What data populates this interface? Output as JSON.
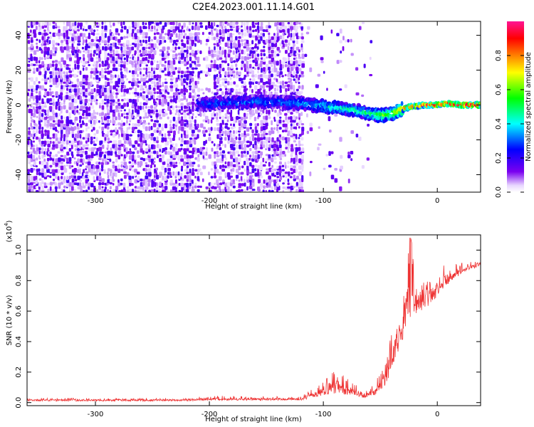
{
  "title": "C2E4.2023.001.11.14.G01",
  "colors": {
    "snr_line": "#ee3333",
    "scale": [
      "#ffffff",
      "#e8d6ff",
      "#7a00f0",
      "#0000ff",
      "#00ffff",
      "#00ff00",
      "#ffff00",
      "#ff8000",
      "#ff0000",
      "#ff1493"
    ]
  },
  "chart_data": [
    {
      "type": "heatmap",
      "xlabel": "Height of straight line (km)",
      "ylabel": "Frequency (Hz)",
      "xlim": [
        -360,
        38
      ],
      "ylim": [
        -50,
        48
      ],
      "xticks": [
        -300,
        -200,
        -100,
        0
      ],
      "yticks": [
        -40,
        -20,
        0,
        20,
        40
      ],
      "colorbar": {
        "label": "Normalized spectral amplitude",
        "range": [
          0,
          1
        ],
        "ticks": [
          "0.0",
          "0.2",
          "0.4",
          "0.6",
          "0.8"
        ]
      },
      "features": {
        "noise_region_x": [
          -360,
          -120
        ],
        "gap_x": [
          -210,
          -198
        ],
        "signal_track": [
          {
            "x": -210,
            "f": 0.0,
            "amp": 0.25
          },
          {
            "x": -195,
            "f": 1.0,
            "amp": 0.3
          },
          {
            "x": -155,
            "f": 2.0,
            "amp": 0.3
          },
          {
            "x": -120,
            "f": 1.0,
            "amp": 0.35
          },
          {
            "x": -100,
            "f": -1.0,
            "amp": 0.4
          },
          {
            "x": -80,
            "f": -2.0,
            "amp": 0.45
          },
          {
            "x": -60,
            "f": -5.0,
            "amp": 0.5
          },
          {
            "x": -50,
            "f": -6.0,
            "amp": 0.55
          },
          {
            "x": -40,
            "f": -5.0,
            "amp": 0.6
          },
          {
            "x": -25,
            "f": -1.0,
            "amp": 0.85
          },
          {
            "x": -10,
            "f": 0.0,
            "amp": 0.9
          },
          {
            "x": 0,
            "f": 0.0,
            "amp": 0.92
          },
          {
            "x": 10,
            "f": 1.0,
            "amp": 0.95
          },
          {
            "x": 20,
            "f": 0.0,
            "amp": 0.95
          },
          {
            "x": 38,
            "f": 0.0,
            "amp": 0.95
          }
        ]
      }
    },
    {
      "type": "line",
      "xlabel": "Height of straight line (km)",
      "ylabel": "SNR (10 * v/v)",
      "multiplier": "(x10",
      "multiplier_exp": "4",
      "multiplier_close": ")",
      "xlim": [
        -360,
        38
      ],
      "ylim": [
        -0.02,
        1.1
      ],
      "xticks": [
        -300,
        -200,
        -100,
        0
      ],
      "yticks": [
        0.0,
        0.2,
        0.4,
        0.6,
        0.8,
        1.0
      ],
      "ytick_labels": [
        "0.0",
        "0.2",
        "0.4",
        "0.6",
        "0.8",
        "1.0"
      ],
      "series": [
        {
          "envelope": [
            {
              "x": -360,
              "base": 0.01,
              "amp": 0.02
            },
            {
              "x": -220,
              "base": 0.01,
              "amp": 0.02
            },
            {
              "x": -200,
              "base": 0.015,
              "amp": 0.03
            },
            {
              "x": -120,
              "base": 0.015,
              "amp": 0.025
            },
            {
              "x": -110,
              "base": 0.03,
              "amp": 0.06
            },
            {
              "x": -90,
              "base": 0.06,
              "amp": 0.17
            },
            {
              "x": -80,
              "base": 0.05,
              "amp": 0.12
            },
            {
              "x": -65,
              "base": 0.03,
              "amp": 0.05
            },
            {
              "x": -55,
              "base": 0.04,
              "amp": 0.08
            },
            {
              "x": -45,
              "base": 0.12,
              "amp": 0.2
            },
            {
              "x": -38,
              "base": 0.25,
              "amp": 0.3
            },
            {
              "x": -30,
              "base": 0.42,
              "amp": 0.3
            },
            {
              "x": -24,
              "base": 0.55,
              "amp": 0.55
            },
            {
              "x": -15,
              "base": 0.6,
              "amp": 0.2
            },
            {
              "x": -5,
              "base": 0.65,
              "amp": 0.22
            },
            {
              "x": 5,
              "base": 0.75,
              "amp": 0.15
            },
            {
              "x": 20,
              "base": 0.84,
              "amp": 0.08
            },
            {
              "x": 38,
              "base": 0.9,
              "amp": 0.04
            }
          ]
        }
      ]
    }
  ]
}
